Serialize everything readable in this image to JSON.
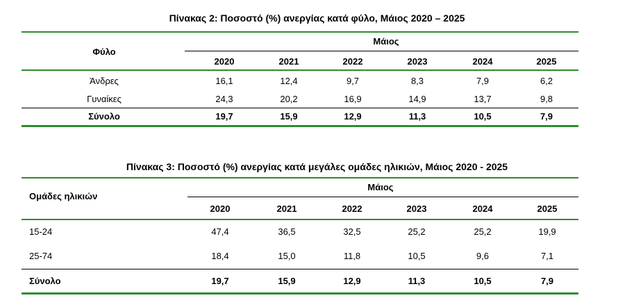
{
  "table2": {
    "title": "Πίνακας 2: Ποσοστό (%) ανεργίας κατά φύλο, Μάιος 2020 – 2025",
    "row_header": "Φύλο",
    "group_header": "Μάιος",
    "years": [
      "2020",
      "2021",
      "2022",
      "2023",
      "2024",
      "2025"
    ],
    "rows": [
      {
        "label": "Άνδρες",
        "values": [
          "16,1",
          "12,4",
          "9,7",
          "8,3",
          "7,9",
          "6,2"
        ]
      },
      {
        "label": "Γυναίκες",
        "values": [
          "24,3",
          "20,2",
          "16,9",
          "14,9",
          "13,7",
          "9,8"
        ]
      }
    ],
    "total": {
      "label": "Σύνολο",
      "values": [
        "19,7",
        "15,9",
        "12,9",
        "11,3",
        "10,5",
        "7,9"
      ]
    }
  },
  "table3": {
    "title": "Πίνακας 3: Ποσοστό (%) ανεργίας κατά μεγάλες ομάδες ηλικιών, Μάιος 2020 - 2025",
    "row_header": "Ομάδες ηλικιών",
    "group_header": "Μάιος",
    "years": [
      "2020",
      "2021",
      "2022",
      "2023",
      "2024",
      "2025"
    ],
    "rows": [
      {
        "label": "15-24",
        "values": [
          "47,4",
          "36,5",
          "32,5",
          "25,2",
          "25,2",
          "19,9"
        ]
      },
      {
        "label": "25-74",
        "values": [
          "18,4",
          "15,0",
          "11,8",
          "10,5",
          "9,6",
          "7,1"
        ]
      }
    ],
    "total": {
      "label": "Σύνολο",
      "values": [
        "19,7",
        "15,9",
        "12,9",
        "11,3",
        "10,5",
        "7,9"
      ]
    }
  },
  "colors": {
    "rule": "#2e8b2e"
  }
}
